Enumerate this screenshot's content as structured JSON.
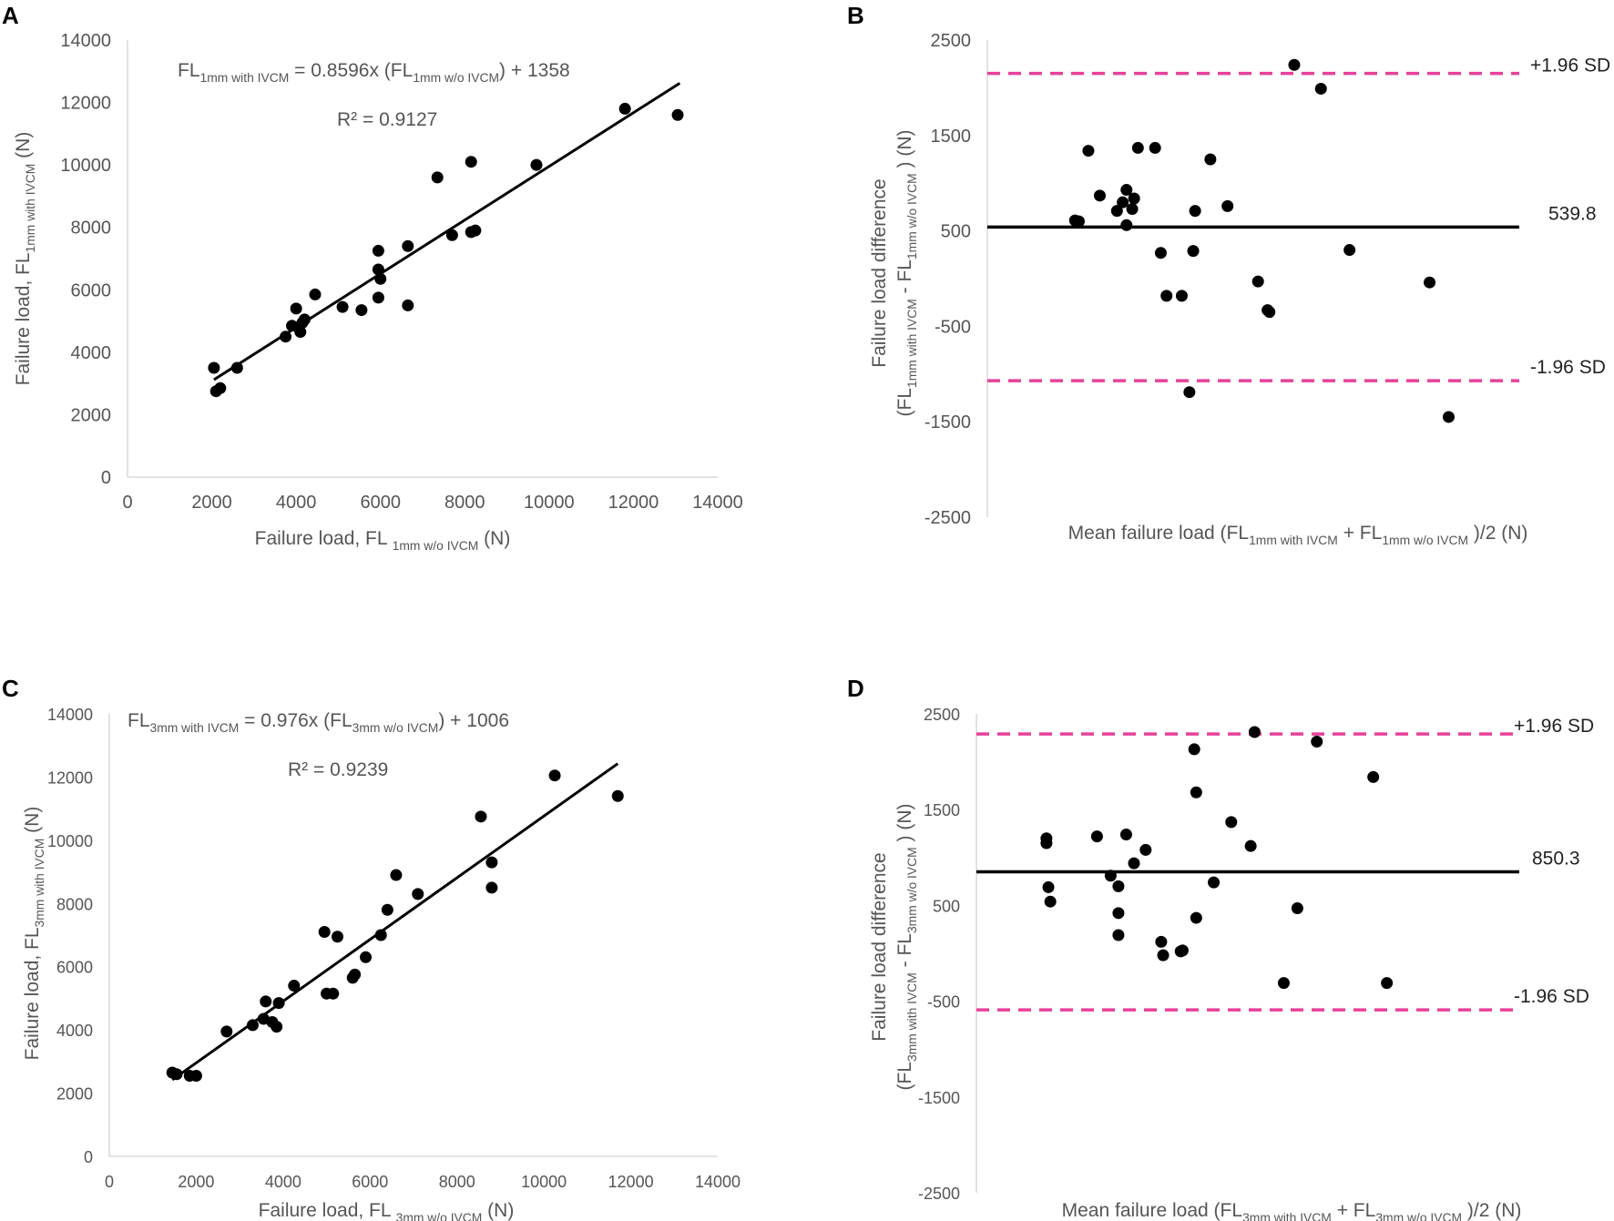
{
  "colors": {
    "sd_line": "#E8409A",
    "points": "#000000",
    "axis": "#D9D9D9",
    "text": "#555555"
  },
  "chart_data": [
    {
      "panel": "A",
      "type": "scatter",
      "xlabel": {
        "main": "Failure load, FL",
        "sub": "1mm w/o IVCM",
        "unit": "(N)"
      },
      "ylabel": {
        "main": "Failure load, FL",
        "sub": "1mm with IVCM",
        "unit": "(N)"
      },
      "xlim": [
        0,
        14000
      ],
      "ylim": [
        0,
        14000
      ],
      "xticks": [
        0,
        2000,
        4000,
        6000,
        8000,
        10000,
        12000,
        14000
      ],
      "yticks": [
        0,
        2000,
        4000,
        6000,
        8000,
        10000,
        12000,
        14000
      ],
      "equation": {
        "lhs": "FL",
        "lhs_sub": "1mm with IVCM",
        "mid": " = 0.8596x (FL",
        "mid_sub": "1mm w/o IVCM",
        "rhs": ") + 1358"
      },
      "r2": "R² = 0.9127",
      "trendline": {
        "slope": 0.8596,
        "intercept": 1358,
        "x_range": [
          2050,
          13100
        ]
      },
      "points": [
        [
          2050,
          3500
        ],
        [
          2100,
          2750
        ],
        [
          2200,
          2850
        ],
        [
          2600,
          3500
        ],
        [
          3750,
          4500
        ],
        [
          3900,
          4850
        ],
        [
          4000,
          5400
        ],
        [
          4050,
          4800
        ],
        [
          4100,
          4650
        ],
        [
          4150,
          4950
        ],
        [
          4200,
          5050
        ],
        [
          4450,
          5850
        ],
        [
          5100,
          5450
        ],
        [
          5550,
          5350
        ],
        [
          5950,
          6650
        ],
        [
          5950,
          5750
        ],
        [
          5950,
          7250
        ],
        [
          6000,
          6350
        ],
        [
          6650,
          7400
        ],
        [
          6650,
          5500
        ],
        [
          7350,
          9600
        ],
        [
          7700,
          7750
        ],
        [
          8150,
          10100
        ],
        [
          8150,
          7850
        ],
        [
          8250,
          7900
        ],
        [
          9700,
          10000
        ],
        [
          11800,
          11800
        ],
        [
          13050,
          11600
        ]
      ]
    },
    {
      "panel": "B",
      "type": "scatter",
      "xlabel": {
        "main": "Mean failure load (FL",
        "sub1": "1mm with IVCM",
        "mid": " + FL",
        "sub2": "1mm w/o IVCM",
        "end": ")/2 (N)"
      },
      "ylabel": {
        "line1": "Failure load difference",
        "line2_a": "(FL",
        "line2_sub1": "1mm with IVCM",
        "line2_b": " - FL",
        "line2_sub2": "1mm w/o IVCM",
        "line2_c": ") (N)"
      },
      "ylim": [
        -2500,
        2500
      ],
      "yticks": [
        2500,
        1500,
        500,
        -500,
        -1500,
        -2500
      ],
      "xlim": [
        0,
        14000
      ],
      "mean_line": {
        "value": 539.8,
        "label": "539.8"
      },
      "upper_sd": {
        "value": 2150,
        "label": "+1.96 SD"
      },
      "lower_sd": {
        "value": -1070,
        "label": "-1.96 SD"
      },
      "points": [
        [
          2300,
          610
        ],
        [
          2400,
          600
        ],
        [
          2650,
          1340
        ],
        [
          2950,
          870
        ],
        [
          3400,
          710
        ],
        [
          3550,
          800
        ],
        [
          3650,
          560
        ],
        [
          3650,
          930
        ],
        [
          3800,
          730
        ],
        [
          3850,
          840
        ],
        [
          3950,
          1370
        ],
        [
          4400,
          1370
        ],
        [
          4550,
          270
        ],
        [
          4700,
          -180
        ],
        [
          5100,
          -180
        ],
        [
          5300,
          -1190
        ],
        [
          5400,
          290
        ],
        [
          5450,
          710
        ],
        [
          5850,
          1250
        ],
        [
          6300,
          760
        ],
        [
          7100,
          -30
        ],
        [
          7350,
          -330
        ],
        [
          7400,
          -350
        ],
        [
          8050,
          2240
        ],
        [
          8750,
          1990
        ],
        [
          9500,
          300
        ],
        [
          11600,
          -40
        ],
        [
          12100,
          -1450
        ]
      ]
    },
    {
      "panel": "C",
      "type": "scatter",
      "xlabel": {
        "main": "Failure load,  FL",
        "sub": "3mm w/o IVCM",
        "unit": "(N)"
      },
      "ylabel": {
        "main": "Failure load, FL",
        "sub": "3mm with IVCM",
        "unit": "(N)"
      },
      "xlim": [
        0,
        14000
      ],
      "ylim": [
        0,
        14000
      ],
      "xticks": [
        0,
        2000,
        4000,
        6000,
        8000,
        10000,
        12000,
        14000
      ],
      "yticks": [
        0,
        2000,
        4000,
        6000,
        8000,
        10000,
        12000,
        14000
      ],
      "equation": {
        "lhs": "FL",
        "lhs_sub": "3mm with IVCM",
        "mid": " = 0.976x (FL",
        "mid_sub": "3mm w/o IVCM",
        "rhs": ") + 1006"
      },
      "r2": "R² = 0.9239",
      "trendline": {
        "slope": 0.976,
        "intercept": 1006,
        "x_range": [
          1450,
          11700
        ]
      },
      "points": [
        [
          1450,
          2650
        ],
        [
          1550,
          2600
        ],
        [
          1850,
          2550
        ],
        [
          2000,
          2550
        ],
        [
          2700,
          3950
        ],
        [
          3300,
          4150
        ],
        [
          3550,
          4350
        ],
        [
          3600,
          4900
        ],
        [
          3750,
          4250
        ],
        [
          3850,
          4100
        ],
        [
          3900,
          4850
        ],
        [
          4250,
          5400
        ],
        [
          4950,
          7100
        ],
        [
          5000,
          5150
        ],
        [
          5150,
          5150
        ],
        [
          5250,
          6950
        ],
        [
          5600,
          5650
        ],
        [
          5650,
          5750
        ],
        [
          5900,
          6300
        ],
        [
          6250,
          7000
        ],
        [
          6400,
          7800
        ],
        [
          6600,
          8900
        ],
        [
          7100,
          8300
        ],
        [
          8550,
          10750
        ],
        [
          8800,
          9300
        ],
        [
          8800,
          8500
        ],
        [
          10250,
          12050
        ],
        [
          11700,
          11400
        ]
      ]
    },
    {
      "panel": "D",
      "type": "scatter",
      "xlabel": {
        "main": "Mean failure load (FL",
        "sub1": "3mm with IVCM",
        "mid": " + FL",
        "sub2": "3mm w/o IVCM",
        "end": ")/2 (N)"
      },
      "ylabel": {
        "line1": "Failure load difference",
        "line2_a": "(FL",
        "line2_sub1": "3mm with IVCM",
        "line2_b": " - FL",
        "line2_sub2": "3mm w/o IVCM",
        "line2_c": ") (N)"
      },
      "ylim": [
        -2500,
        2500
      ],
      "yticks": [
        2500,
        1500,
        500,
        -500,
        -1500,
        -2500
      ],
      "xlim": [
        0,
        14000
      ],
      "mean_line": {
        "value": 850.3,
        "label": "850.3"
      },
      "upper_sd": {
        "value": 2290,
        "label": "+1.96 SD"
      },
      "lower_sd": {
        "value": -590,
        "label": "-1.96 SD"
      },
      "points": [
        [
          1800,
          1200
        ],
        [
          1800,
          1150
        ],
        [
          1850,
          690
        ],
        [
          1900,
          540
        ],
        [
          3100,
          1220
        ],
        [
          3450,
          810
        ],
        [
          3650,
          700
        ],
        [
          3650,
          420
        ],
        [
          3650,
          190
        ],
        [
          3850,
          1240
        ],
        [
          4050,
          940
        ],
        [
          4350,
          1080
        ],
        [
          4750,
          120
        ],
        [
          4800,
          -20
        ],
        [
          5250,
          20
        ],
        [
          5300,
          30
        ],
        [
          5600,
          2130
        ],
        [
          5650,
          1680
        ],
        [
          5650,
          370
        ],
        [
          6100,
          740
        ],
        [
          6550,
          1370
        ],
        [
          7050,
          1120
        ],
        [
          7150,
          2310
        ],
        [
          7900,
          -310
        ],
        [
          8250,
          470
        ],
        [
          8750,
          2210
        ],
        [
          10200,
          1840
        ],
        [
          10550,
          -310
        ]
      ]
    }
  ]
}
